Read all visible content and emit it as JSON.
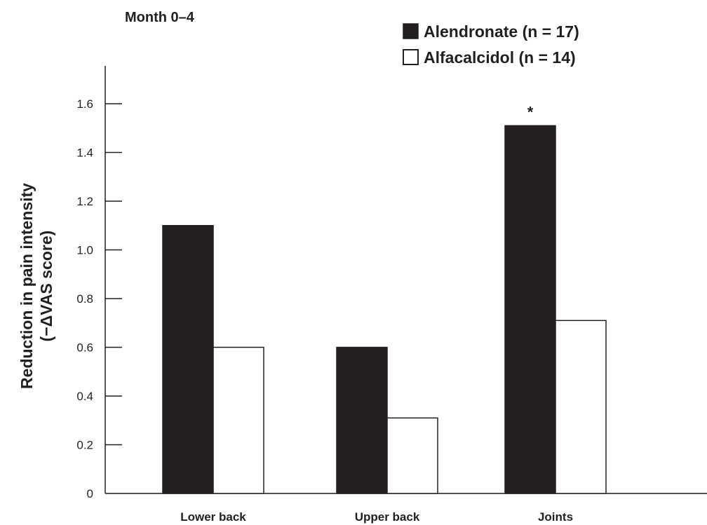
{
  "chart_data": {
    "type": "bar",
    "title": "Month 0–4",
    "ylabel_line1": "Reduction in pain intensity",
    "ylabel_line2": "(−ΔVAS score)",
    "xlabel": "",
    "categories": [
      "Lower back",
      "Upper back",
      "Joints"
    ],
    "series": [
      {
        "name": "Alendronate (n = 17)",
        "color": "#231f20",
        "fill": "solid",
        "values": [
          1.1,
          0.6,
          1.51
        ]
      },
      {
        "name": "Alfacalcidol (n = 14)",
        "color": "#ffffff",
        "fill": "outline",
        "values": [
          0.6,
          0.31,
          0.71
        ]
      }
    ],
    "yticks": [
      {
        "value": 0,
        "label": "0"
      },
      {
        "value": 0.2,
        "label": "0.2"
      },
      {
        "value": 0.4,
        "label": "0.4"
      },
      {
        "value": 0.6,
        "label": "0.6"
      },
      {
        "value": 0.8,
        "label": "0.8"
      },
      {
        "value": 1.0,
        "label": "1.0"
      },
      {
        "value": 1.2,
        "label": "1.2"
      },
      {
        "value": 1.4,
        "label": "1.4"
      },
      {
        "value": 1.6,
        "label": "1.6"
      }
    ],
    "ylim": [
      0,
      1.8
    ],
    "grid": false,
    "legend_position": "top-right",
    "annotations": [
      {
        "text": "*",
        "category": "Joints",
        "series": "Alendronate (n = 17)"
      }
    ]
  }
}
